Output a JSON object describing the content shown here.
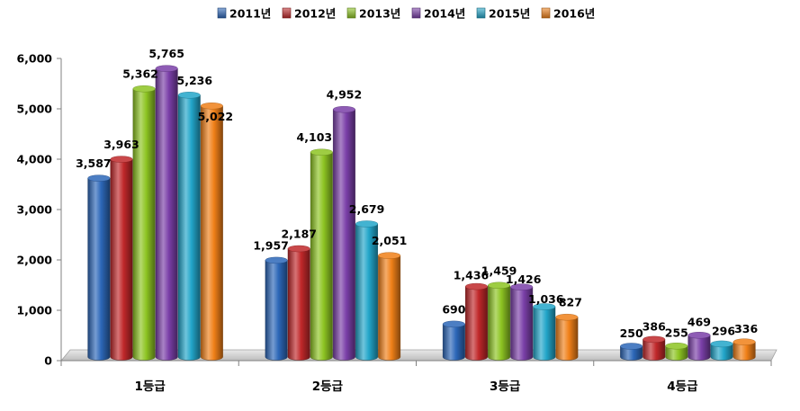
{
  "chart_data": {
    "type": "bar",
    "categories": [
      "1등급",
      "2등급",
      "3등급",
      "4등급"
    ],
    "series": [
      {
        "name": "2011년",
        "color": "#2c67b8",
        "values": [
          3587,
          1957,
          690,
          250
        ]
      },
      {
        "name": "2012년",
        "color": "#c0282a",
        "values": [
          3963,
          2187,
          1436,
          386
        ]
      },
      {
        "name": "2013년",
        "color": "#8dc422",
        "values": [
          5362,
          4103,
          1459,
          255
        ]
      },
      {
        "name": "2014년",
        "color": "#7a3fa8",
        "values": [
          5765,
          4952,
          1426,
          469
        ]
      },
      {
        "name": "2015년",
        "color": "#22a5c9",
        "values": [
          5236,
          2679,
          1036,
          296
        ]
      },
      {
        "name": "2016년",
        "color": "#f08018",
        "values": [
          5022,
          2051,
          827,
          336
        ]
      }
    ],
    "data_labels": [
      [
        "3,587",
        "1,957",
        "690",
        "250"
      ],
      [
        "3,963",
        "2,187",
        "1,436",
        "386"
      ],
      [
        "5,362",
        "4,103",
        "1,459",
        "255"
      ],
      [
        "5,765",
        "4,952",
        "1,426",
        "469"
      ],
      [
        "5,236",
        "2,679",
        "1,036",
        "296"
      ],
      [
        "5,022",
        "2,051",
        "827",
        "336"
      ]
    ],
    "ylim": [
      0,
      6000
    ],
    "yticks": [
      0,
      1000,
      2000,
      3000,
      4000,
      5000,
      6000
    ],
    "ytick_labels": [
      "0",
      "1,000",
      "2,000",
      "3,000",
      "4,000",
      "5,000",
      "6,000"
    ],
    "legend_position": "top-center",
    "grid": false
  }
}
